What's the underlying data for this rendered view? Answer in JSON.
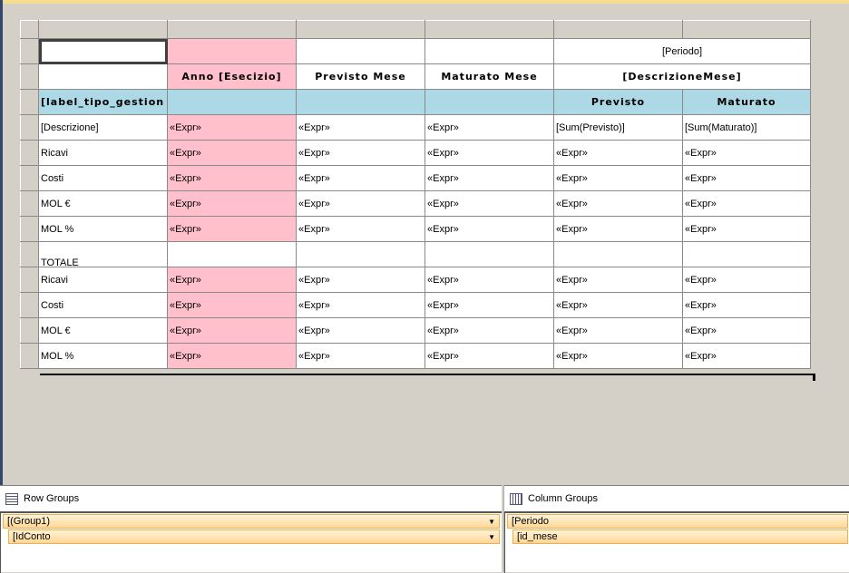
{
  "tablix": {
    "headers": {
      "anno": "Anno [Esecizio]",
      "previsto_mese": "Previsto Mese",
      "maturato_mese": "Maturato Mese",
      "periodo": "[Periodo]",
      "descrizione_mese": "[DescrizioneMese]",
      "previsto": "Previsto",
      "maturato": "Maturato"
    },
    "group_label": "[label_tipo_gestion",
    "rows": [
      {
        "label": "[Descrizione]",
        "cells": [
          "«Expr»",
          "«Expr»",
          "«Expr»",
          "[Sum(Previsto)]",
          "[Sum(Maturato)]"
        ]
      },
      {
        "label": "Ricavi",
        "cells": [
          "«Expr»",
          "«Expr»",
          "«Expr»",
          "«Expr»",
          "«Expr»"
        ]
      },
      {
        "label": "Costi",
        "cells": [
          "«Expr»",
          "«Expr»",
          "«Expr»",
          "«Expr»",
          "«Expr»"
        ]
      },
      {
        "label": "MOL €",
        "cells": [
          "«Expr»",
          "«Expr»",
          "«Expr»",
          "«Expr»",
          "«Expr»"
        ]
      },
      {
        "label": "MOL %",
        "cells": [
          "«Expr»",
          "«Expr»",
          "«Expr»",
          "«Expr»",
          "«Expr»"
        ]
      }
    ],
    "totale_label": "TOTALE",
    "total_rows": [
      {
        "label": "Ricavi",
        "cells": [
          "«Expr»",
          "«Expr»",
          "«Expr»",
          "«Expr»",
          "«Expr»"
        ]
      },
      {
        "label": "Costi",
        "cells": [
          "«Expr»",
          "«Expr»",
          "«Expr»",
          "«Expr»",
          "«Expr»"
        ]
      },
      {
        "label": "MOL €",
        "cells": [
          "«Expr»",
          "«Expr»",
          "«Expr»",
          "«Expr»",
          "«Expr»"
        ]
      },
      {
        "label": "MOL %",
        "cells": [
          "«Expr»",
          "«Expr»",
          "«Expr»",
          "«Expr»",
          "«Expr»"
        ]
      }
    ]
  },
  "row_groups": {
    "title": "Row Groups",
    "items": [
      "(Group1)",
      "IdConto"
    ]
  },
  "column_groups": {
    "title": "Column Groups",
    "items": [
      "Periodo",
      "id_mese"
    ]
  }
}
